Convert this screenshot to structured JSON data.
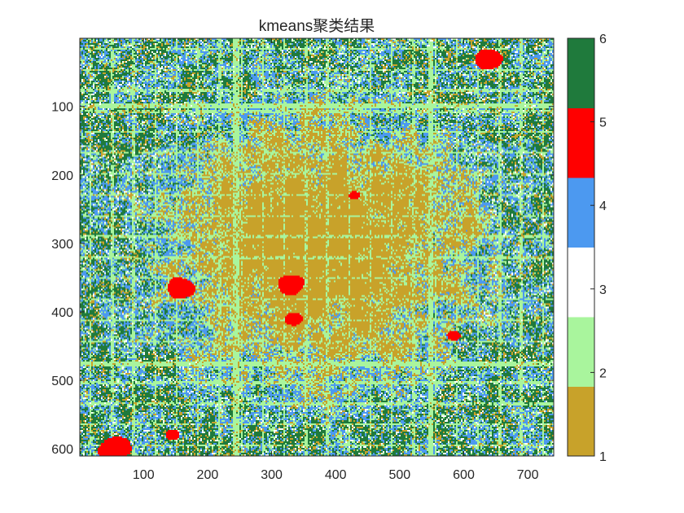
{
  "chart_data": {
    "type": "heatmap",
    "title": "kmeans聚类结果",
    "xlabel": "",
    "ylabel": "",
    "xlim": [
      0.5,
      740.5
    ],
    "ylim": [
      0.5,
      610.5
    ],
    "y_reversed": true,
    "xticks": [
      100,
      200,
      300,
      400,
      500,
      600,
      700
    ],
    "yticks": [
      100,
      200,
      300,
      400,
      500,
      600
    ],
    "colorbar": {
      "location": "right",
      "clim": [
        1,
        6
      ],
      "ticks": [
        1,
        2,
        3,
        4,
        5,
        6
      ],
      "colors": [
        "#C8A22A",
        "#A9F59D",
        "#FFFFFF",
        "#4C99F0",
        "#FF0000",
        "#1F7A3C"
      ]
    },
    "cluster_labels": [
      1,
      2,
      3,
      4,
      5,
      6
    ],
    "approx_cluster_share": {
      "1": 0.32,
      "2": 0.2,
      "3": 0.05,
      "4": 0.22,
      "5": 0.02,
      "6": 0.19
    },
    "dominant_pattern": {
      "center": "clusters 1 and 2 dominate inside a rectangular ring road around x≈230–550, y≈120–470",
      "outskirts": "clusters 4 and 6 dominate toward the edges",
      "cluster_5_regions_data_units": [
        {
          "x": 55,
          "y": 600
        },
        {
          "x": 330,
          "y": 360
        },
        {
          "x": 335,
          "y": 410
        },
        {
          "x": 160,
          "y": 365
        },
        {
          "x": 640,
          "y": 30
        },
        {
          "x": 585,
          "y": 435
        },
        {
          "x": 430,
          "y": 230
        },
        {
          "x": 145,
          "y": 580
        }
      ]
    }
  }
}
